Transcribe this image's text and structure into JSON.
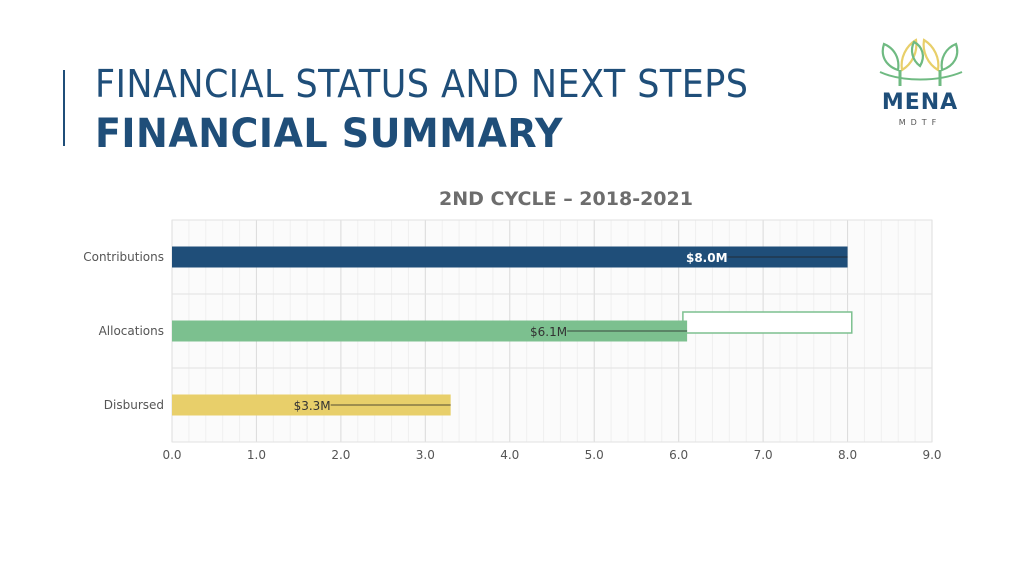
{
  "header": {
    "title_line1": "FINANCIAL STATUS AND NEXT STEPS",
    "title_line2": "FINANCIAL SUMMARY"
  },
  "logo": {
    "name": "MENA",
    "subtitle": "MDTF",
    "colors": {
      "leaf_yellow": "#e8cf6a",
      "leaf_green": "#6fba82",
      "text": "#1f4e79"
    }
  },
  "chart_data": {
    "type": "bar",
    "orientation": "horizontal",
    "title": "2ND CYCLE – 2018-2021",
    "categories": [
      "Contributions",
      "Allocations",
      "Disbursed"
    ],
    "values": [
      8.0,
      6.1,
      3.3
    ],
    "data_labels": [
      "$8.0M",
      "$6.1M",
      "$3.3M"
    ],
    "colors": [
      "#1f4e79",
      "#7cc08f",
      "#e8cf6a"
    ],
    "xlim": [
      0,
      9
    ],
    "xticks": [
      "0.0",
      "1.0",
      "2.0",
      "3.0",
      "4.0",
      "5.0",
      "6.0",
      "7.0",
      "8.0",
      "9.0"
    ],
    "xlabel": "",
    "ylabel": "",
    "grid": true,
    "legend": "none",
    "annotation": {
      "category": "Allocations",
      "from": 6.05,
      "to": 8.05,
      "style": "outlined-box",
      "color": "#7cc08f"
    }
  }
}
